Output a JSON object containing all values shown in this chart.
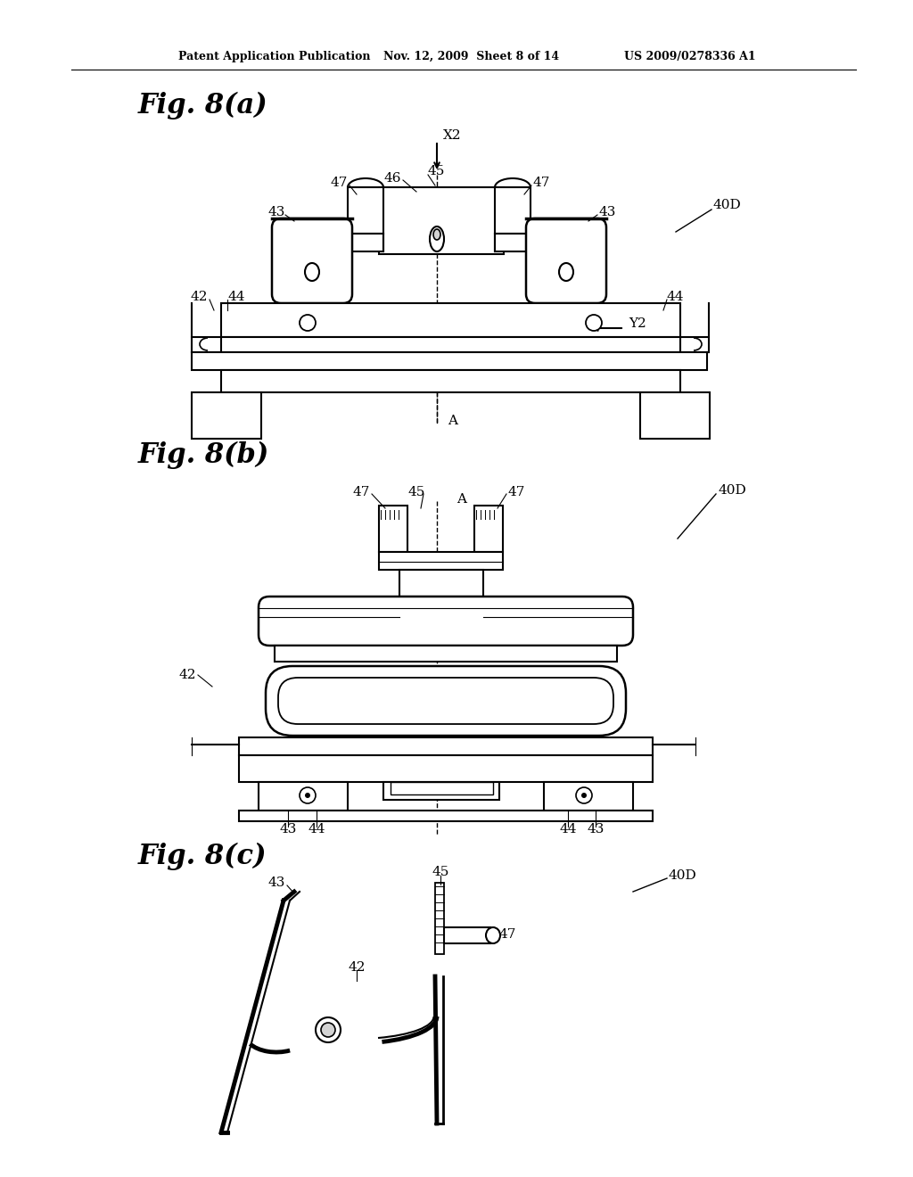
{
  "background_color": "#ffffff",
  "header_left": "Patent Application Publication",
  "header_mid": "Nov. 12, 2009  Sheet 8 of 14",
  "header_right": "US 2009/0278336 A1",
  "fig_a_title": "Fig. 8(a)",
  "fig_b_title": "Fig. 8(b)",
  "fig_c_title": "Fig. 8(c)"
}
